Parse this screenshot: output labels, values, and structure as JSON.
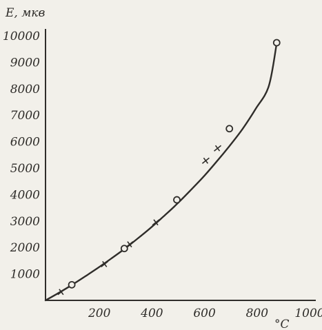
{
  "chart_data": {
    "type": "line",
    "title": "",
    "ylabel": "E, мкв",
    "xlabel": "°C",
    "xlim": [
      0,
      1000
    ],
    "ylim": [
      0,
      10000
    ],
    "x_ticks": [
      200,
      400,
      600,
      800,
      1000
    ],
    "x_tick_labels": [
      "200",
      "400",
      "600",
      "800",
      "1000"
    ],
    "y_ticks": [
      1000,
      2000,
      3000,
      4000,
      5000,
      6000,
      7000,
      8000,
      9000,
      10000
    ],
    "y_tick_labels": [
      "1000",
      "2000",
      "3000",
      "4000",
      "5000",
      "6000",
      "7000",
      "8000",
      "9000",
      "10000"
    ],
    "grid": false,
    "colors": {
      "ink": "#2f2d2a",
      "paper": "#f2f0ea"
    },
    "curve": {
      "x": [
        0,
        50,
        100,
        150,
        200,
        250,
        300,
        350,
        400,
        450,
        500,
        550,
        600,
        650,
        700,
        750,
        800,
        850,
        880
      ],
      "y": [
        0,
        280,
        580,
        900,
        1230,
        1580,
        1940,
        2330,
        2740,
        3180,
        3640,
        4140,
        4660,
        5230,
        5830,
        6480,
        7240,
        8100,
        9720
      ]
    },
    "series": [
      {
        "marker": "circle",
        "x": [
          100,
          300,
          500,
          700,
          880
        ],
        "y": [
          590,
          1960,
          3800,
          6490,
          9740
        ]
      },
      {
        "marker": "cross",
        "x": [
          60,
          225,
          320,
          420,
          610,
          655
        ],
        "y": [
          320,
          1370,
          2120,
          2950,
          5280,
          5750
        ]
      }
    ]
  }
}
